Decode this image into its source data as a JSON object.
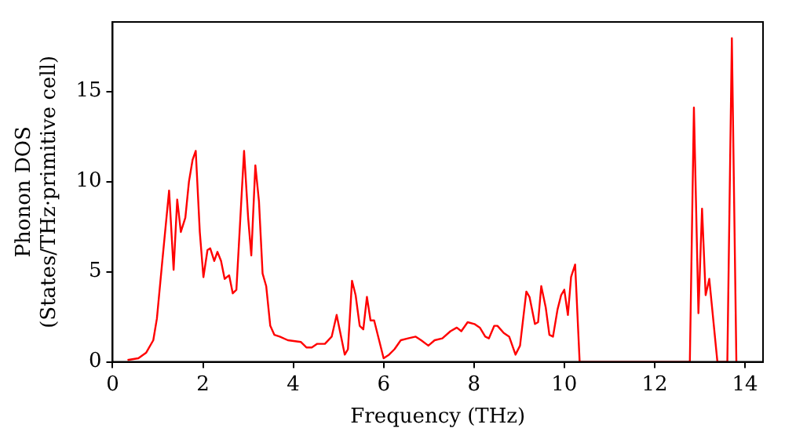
{
  "chart_data": {
    "type": "line",
    "xlabel": "Frequency (THz)",
    "ylabel": "Phonon DOS\n(States/THz·primitive cell)",
    "xlim": [
      0,
      14.4
    ],
    "ylim": [
      0,
      18.85
    ],
    "xticks": [
      0,
      2,
      4,
      6,
      8,
      10,
      12,
      14
    ],
    "yticks": [
      0,
      5,
      10,
      15
    ],
    "grid": false,
    "legend": false,
    "marker": "none",
    "line_style": "solid",
    "series": [
      {
        "color": "#ff0000",
        "x": [
          0.33,
          0.57,
          0.74,
          0.9,
          0.98,
          1.1,
          1.25,
          1.35,
          1.43,
          1.51,
          1.61,
          1.69,
          1.77,
          1.84,
          1.93,
          2.01,
          2.1,
          2.16,
          2.25,
          2.32,
          2.4,
          2.48,
          2.58,
          2.66,
          2.74,
          2.91,
          3.0,
          3.07,
          3.16,
          3.24,
          3.32,
          3.4,
          3.49,
          3.58,
          3.7,
          3.88,
          4.17,
          4.29,
          4.41,
          4.53,
          4.7,
          4.85,
          4.96,
          5.14,
          5.21,
          5.3,
          5.38,
          5.47,
          5.55,
          5.63,
          5.71,
          5.79,
          5.89,
          6.0,
          6.12,
          6.24,
          6.38,
          6.54,
          6.71,
          6.83,
          6.99,
          7.13,
          7.3,
          7.48,
          7.62,
          7.72,
          7.86,
          8.01,
          8.13,
          8.25,
          8.33,
          8.45,
          8.52,
          8.66,
          8.78,
          8.92,
          9.02,
          9.16,
          9.23,
          9.35,
          9.42,
          9.49,
          9.59,
          9.67,
          9.75,
          9.85,
          9.93,
          10.0,
          10.08,
          10.15,
          10.24,
          10.34,
          12.78,
          12.87,
          12.97,
          13.05,
          13.13,
          13.21,
          13.39,
          13.61,
          13.71,
          13.81
        ],
        "values": [
          0.1,
          0.2,
          0.5,
          1.2,
          2.4,
          5.6,
          9.5,
          5.1,
          9.0,
          7.2,
          8.0,
          10.0,
          11.2,
          11.7,
          7.2,
          4.7,
          6.2,
          6.3,
          5.6,
          6.1,
          5.6,
          4.6,
          4.8,
          3.8,
          4.0,
          11.7,
          8.0,
          5.9,
          10.9,
          8.9,
          4.9,
          4.2,
          2.0,
          1.5,
          1.4,
          1.2,
          1.1,
          0.8,
          0.8,
          1.0,
          1.0,
          1.4,
          2.6,
          0.4,
          0.7,
          4.5,
          3.7,
          2.0,
          1.8,
          3.6,
          2.3,
          2.3,
          1.3,
          0.2,
          0.4,
          0.7,
          1.2,
          1.3,
          1.4,
          1.2,
          0.9,
          1.2,
          1.3,
          1.7,
          1.9,
          1.7,
          2.2,
          2.1,
          1.9,
          1.4,
          1.3,
          2.0,
          2.0,
          1.6,
          1.4,
          0.4,
          0.9,
          3.9,
          3.6,
          2.1,
          2.2,
          4.2,
          3.0,
          1.5,
          1.4,
          2.9,
          3.7,
          4.0,
          2.6,
          4.7,
          5.4,
          0,
          0,
          14.1,
          2.7,
          8.5,
          3.7,
          4.6,
          0,
          0,
          17.95,
          0
        ]
      }
    ]
  }
}
